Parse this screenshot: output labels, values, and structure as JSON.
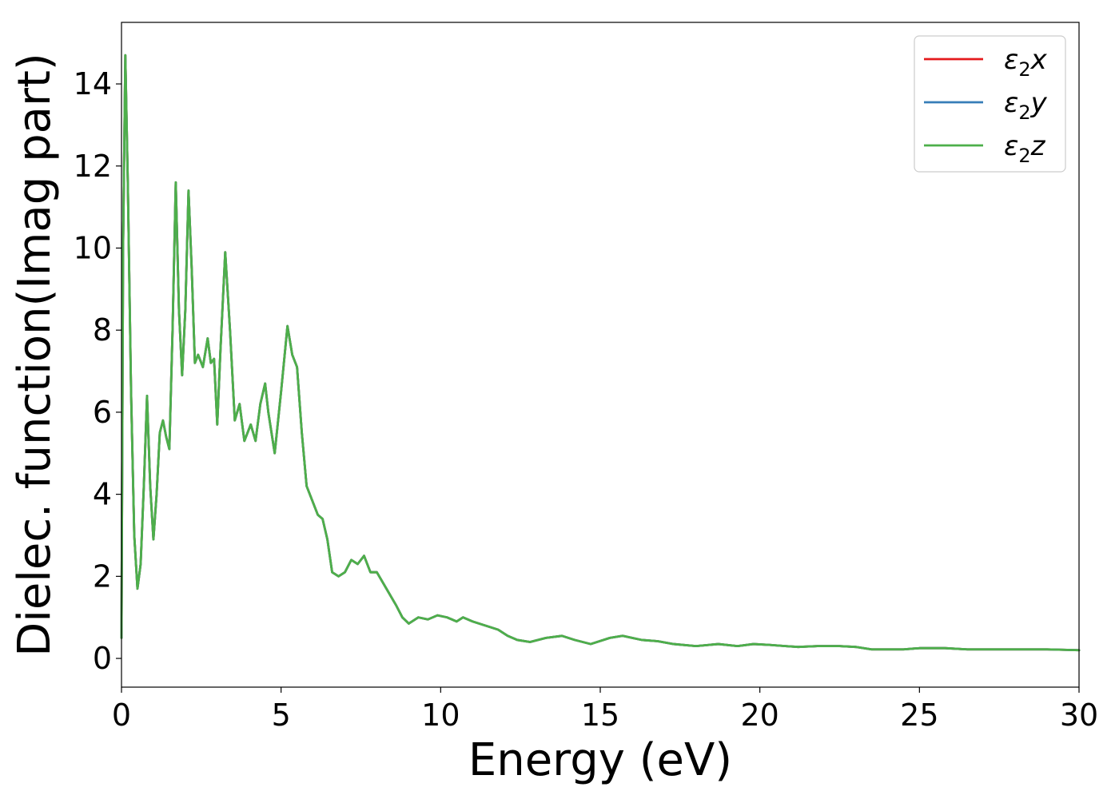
{
  "chart_data": {
    "type": "line",
    "xlabel": "Energy (eV)",
    "ylabel": "Dielec. function(Imag part)",
    "xlim": [
      0,
      30
    ],
    "ylim": [
      -0.7,
      15.5
    ],
    "xticks": [
      0,
      5,
      10,
      15,
      20,
      25,
      30
    ],
    "yticks": [
      0,
      2,
      4,
      6,
      8,
      10,
      12,
      14
    ],
    "xtick_labels": [
      "0",
      "5",
      "10",
      "15",
      "20",
      "25",
      "30"
    ],
    "ytick_labels": [
      "0",
      "2",
      "4",
      "6",
      "8",
      "10",
      "12",
      "14"
    ],
    "legend_position": "top-right",
    "grid": false,
    "series": [
      {
        "name": "ε₂x",
        "legend_base": "ε",
        "legend_sub": "2",
        "legend_suffix": "x",
        "color": "#e41a1c",
        "x": [
          0.0,
          0.05,
          0.12,
          0.2,
          0.3,
          0.4,
          0.5,
          0.6,
          0.7,
          0.8,
          0.9,
          1.0,
          1.1,
          1.2,
          1.3,
          1.4,
          1.5,
          1.6,
          1.7,
          1.8,
          1.9,
          2.0,
          2.1,
          2.2,
          2.3,
          2.4,
          2.55,
          2.7,
          2.8,
          2.9,
          3.0,
          3.1,
          3.25,
          3.4,
          3.55,
          3.7,
          3.85,
          4.05,
          4.2,
          4.35,
          4.5,
          4.6,
          4.8,
          5.0,
          5.2,
          5.35,
          5.5,
          5.65,
          5.8,
          6.0,
          6.15,
          6.3,
          6.45,
          6.6,
          6.8,
          7.0,
          7.2,
          7.4,
          7.6,
          7.8,
          8.0,
          8.3,
          8.6,
          8.8,
          9.0,
          9.3,
          9.6,
          9.9,
          10.2,
          10.5,
          10.7,
          11.0,
          11.4,
          11.8,
          12.1,
          12.4,
          12.8,
          13.3,
          13.8,
          14.2,
          14.7,
          15.3,
          15.7,
          16.0,
          16.3,
          16.8,
          17.3,
          18.0,
          18.7,
          19.3,
          19.8,
          20.3,
          20.8,
          21.2,
          21.8,
          22.5,
          23.0,
          23.5,
          24.0,
          24.5,
          25.0,
          25.8,
          26.5,
          27.2,
          28.0,
          29.0,
          30.0
        ],
        "values": [
          0.5,
          10.0,
          14.7,
          11.5,
          6.5,
          3.0,
          1.7,
          2.3,
          4.2,
          6.4,
          4.2,
          2.9,
          4.0,
          5.5,
          5.8,
          5.4,
          5.1,
          8.0,
          11.6,
          8.5,
          6.9,
          8.5,
          11.4,
          9.5,
          7.2,
          7.4,
          7.1,
          7.8,
          7.2,
          7.3,
          5.7,
          7.5,
          9.9,
          8.0,
          5.8,
          6.2,
          5.3,
          5.7,
          5.3,
          6.2,
          6.7,
          6.0,
          5.0,
          6.5,
          8.1,
          7.4,
          7.1,
          5.5,
          4.2,
          3.8,
          3.5,
          3.4,
          2.9,
          2.1,
          2.0,
          2.1,
          2.4,
          2.3,
          2.5,
          2.1,
          2.1,
          1.7,
          1.3,
          1.0,
          0.85,
          1.0,
          0.95,
          1.05,
          1.0,
          0.9,
          1.0,
          0.9,
          0.8,
          0.7,
          0.55,
          0.45,
          0.4,
          0.5,
          0.55,
          0.45,
          0.35,
          0.5,
          0.55,
          0.5,
          0.45,
          0.42,
          0.35,
          0.3,
          0.35,
          0.3,
          0.35,
          0.33,
          0.3,
          0.28,
          0.3,
          0.3,
          0.28,
          0.22,
          0.22,
          0.22,
          0.25,
          0.25,
          0.22,
          0.22,
          0.22,
          0.22,
          0.2
        ]
      },
      {
        "name": "ε₂y",
        "legend_base": "ε",
        "legend_sub": "2",
        "legend_suffix": "y",
        "color": "#377eb8",
        "same_as": 0
      },
      {
        "name": "ε₂z",
        "legend_base": "ε",
        "legend_sub": "2",
        "legend_suffix": "z",
        "color": "#4daf4a",
        "same_as": 0
      }
    ]
  }
}
